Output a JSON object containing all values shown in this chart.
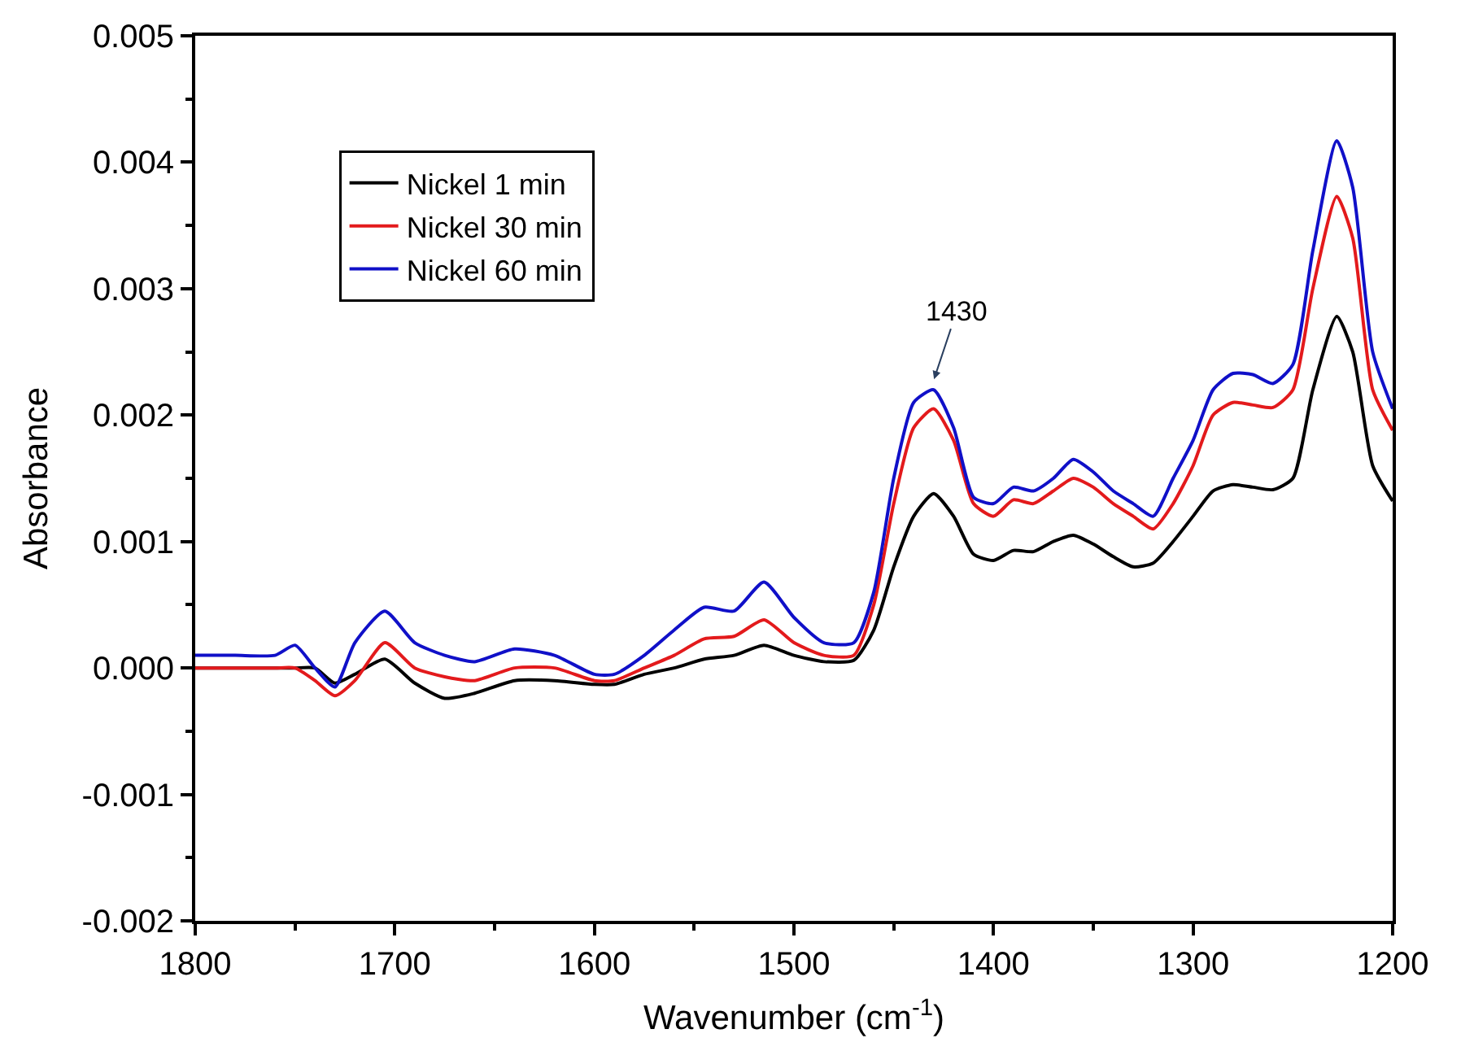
{
  "chart_data": {
    "type": "line",
    "xlabel": "Wavenumber (cm$^{-1}$)",
    "ylabel": "Absorbance",
    "x": [
      1800,
      1780,
      1760,
      1750,
      1740,
      1730,
      1720,
      1705,
      1690,
      1675,
      1660,
      1640,
      1620,
      1600,
      1590,
      1575,
      1560,
      1545,
      1530,
      1515,
      1500,
      1485,
      1470,
      1460,
      1450,
      1440,
      1430,
      1420,
      1410,
      1400,
      1390,
      1380,
      1370,
      1360,
      1350,
      1340,
      1330,
      1320,
      1310,
      1300,
      1290,
      1280,
      1270,
      1260,
      1250,
      1240,
      1228,
      1220,
      1210,
      1200
    ],
    "series": [
      {
        "name": "Nickel 1 min",
        "color": "#000000",
        "values": [
          0.0,
          0.0,
          0.0,
          0.0,
          0.0,
          -0.00012,
          -5e-05,
          7e-05,
          -0.00012,
          -0.00024,
          -0.0002,
          -0.0001,
          -0.0001,
          -0.00013,
          -0.00013,
          -5e-05,
          0.0,
          7e-05,
          0.0001,
          0.00018,
          0.0001,
          5e-05,
          6e-05,
          0.0003,
          0.0008,
          0.0012,
          0.00138,
          0.0012,
          0.0009,
          0.00085,
          0.00093,
          0.00092,
          0.001,
          0.00105,
          0.00098,
          0.00088,
          0.0008,
          0.00083,
          0.001,
          0.0012,
          0.0014,
          0.00145,
          0.00143,
          0.00141,
          0.0015,
          0.0022,
          0.00278,
          0.0025,
          0.0016,
          0.00132
        ]
      },
      {
        "name": "Nickel 30 min",
        "color": "#e31a1c",
        "values": [
          0.0,
          0.0,
          0.0,
          0.0,
          -0.0001,
          -0.00022,
          -0.0001,
          0.0002,
          0.0,
          -7e-05,
          -0.0001,
          0.0,
          0.0,
          -0.0001,
          -0.0001,
          0.0,
          0.0001,
          0.00023,
          0.00025,
          0.00038,
          0.0002,
          0.0001,
          0.0001,
          0.0005,
          0.0013,
          0.0019,
          0.00205,
          0.0018,
          0.0013,
          0.0012,
          0.00133,
          0.0013,
          0.0014,
          0.0015,
          0.00143,
          0.0013,
          0.0012,
          0.0011,
          0.0013,
          0.0016,
          0.002,
          0.0021,
          0.00208,
          0.00206,
          0.0022,
          0.003,
          0.00373,
          0.0034,
          0.0022,
          0.00188
        ]
      },
      {
        "name": "Nickel 60 min",
        "color": "#1010c8",
        "values": [
          0.0001,
          0.0001,
          0.0001,
          0.00018,
          0.0,
          -0.00015,
          0.0002,
          0.00045,
          0.0002,
          0.0001,
          5e-05,
          0.00015,
          0.0001,
          -5e-05,
          -5e-05,
          0.0001,
          0.0003,
          0.00048,
          0.00045,
          0.00068,
          0.0004,
          0.0002,
          0.0002,
          0.0006,
          0.0015,
          0.0021,
          0.0022,
          0.0019,
          0.00135,
          0.0013,
          0.00143,
          0.0014,
          0.0015,
          0.00165,
          0.00155,
          0.0014,
          0.0013,
          0.0012,
          0.0015,
          0.0018,
          0.0022,
          0.00233,
          0.00232,
          0.00225,
          0.0024,
          0.0033,
          0.00417,
          0.0038,
          0.0025,
          0.00205
        ]
      }
    ],
    "xlim": [
      1800,
      1200
    ],
    "xticks": [
      1800,
      1700,
      1600,
      1500,
      1400,
      1300,
      1200
    ],
    "ylim": [
      -0.002,
      0.005
    ],
    "yticks": [
      {
        "value": -0.002,
        "label": "-0.002"
      },
      {
        "value": -0.001,
        "label": "-0.001"
      },
      {
        "value": 0,
        "label": "0.000"
      },
      {
        "value": 0.001,
        "label": "0.001"
      },
      {
        "value": 0.002,
        "label": "0.002"
      },
      {
        "value": 0.003,
        "label": "0.003"
      },
      {
        "value": 0.004,
        "label": "0.004"
      },
      {
        "value": 0.005,
        "label": "0.005"
      }
    ],
    "annotations": [
      "1430"
    ],
    "legend": "top left",
    "marker": "none",
    "line_style": "solid"
  }
}
